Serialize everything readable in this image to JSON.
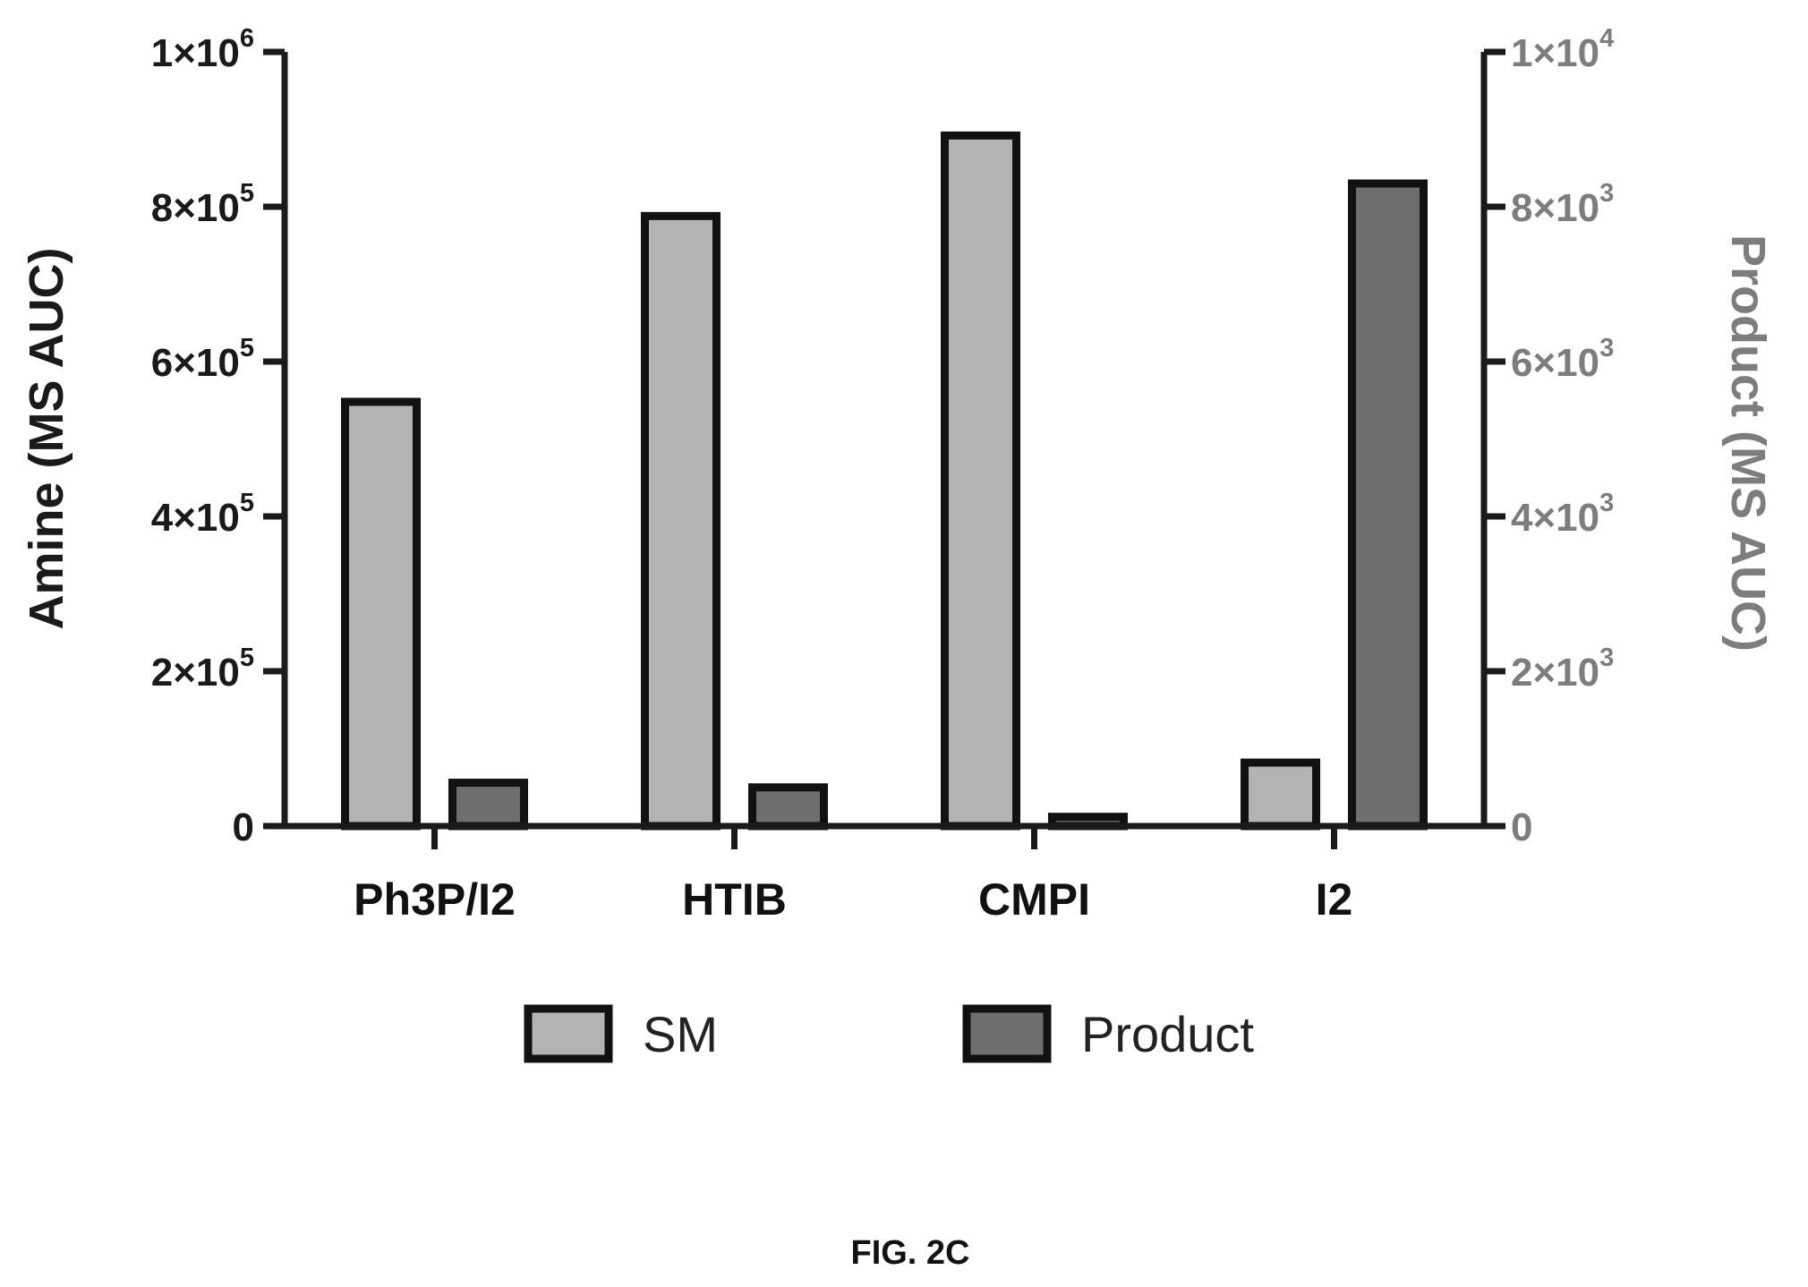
{
  "chart_data": {
    "type": "bar",
    "categories": [
      "Ph3P/I2",
      "HTIB",
      "CMPI",
      "I2"
    ],
    "series": [
      {
        "name": "SM",
        "axis": "left",
        "values": [
          548000,
          788000,
          892000,
          82000
        ],
        "color": "#b3b3b3"
      },
      {
        "name": "Product",
        "axis": "right",
        "values": [
          560,
          500,
          120,
          8300
        ],
        "color": "#6e6e6e"
      }
    ],
    "ylabel_left": "Amine (MS AUC)",
    "ylabel_right": "Product (MS AUC)",
    "ylim_left": [
      0,
      1000000
    ],
    "ylim_right": [
      0,
      10000
    ],
    "yticks_left": [
      {
        "value": 0,
        "mantissa": "0",
        "exponent": ""
      },
      {
        "value": 200000,
        "mantissa": "2×10",
        "exponent": "5"
      },
      {
        "value": 400000,
        "mantissa": "4×10",
        "exponent": "5"
      },
      {
        "value": 600000,
        "mantissa": "6×10",
        "exponent": "5"
      },
      {
        "value": 800000,
        "mantissa": "8×10",
        "exponent": "5"
      },
      {
        "value": 1000000,
        "mantissa": "1×10",
        "exponent": "6"
      }
    ],
    "yticks_right": [
      {
        "value": 0,
        "mantissa": "0",
        "exponent": ""
      },
      {
        "value": 2000,
        "mantissa": "2×10",
        "exponent": "3"
      },
      {
        "value": 4000,
        "mantissa": "4×10",
        "exponent": "3"
      },
      {
        "value": 6000,
        "mantissa": "6×10",
        "exponent": "3"
      },
      {
        "value": 8000,
        "mantissa": "8×10",
        "exponent": "3"
      },
      {
        "value": 10000,
        "mantissa": "1×10",
        "exponent": "4"
      }
    ],
    "legend": {
      "position": "bottom"
    },
    "grid": false
  },
  "colors": {
    "left_axis": "#1a1a1a",
    "right_axis": "#7d7d7d",
    "bar_outline": "#111111"
  },
  "caption": "FIG. 2C"
}
